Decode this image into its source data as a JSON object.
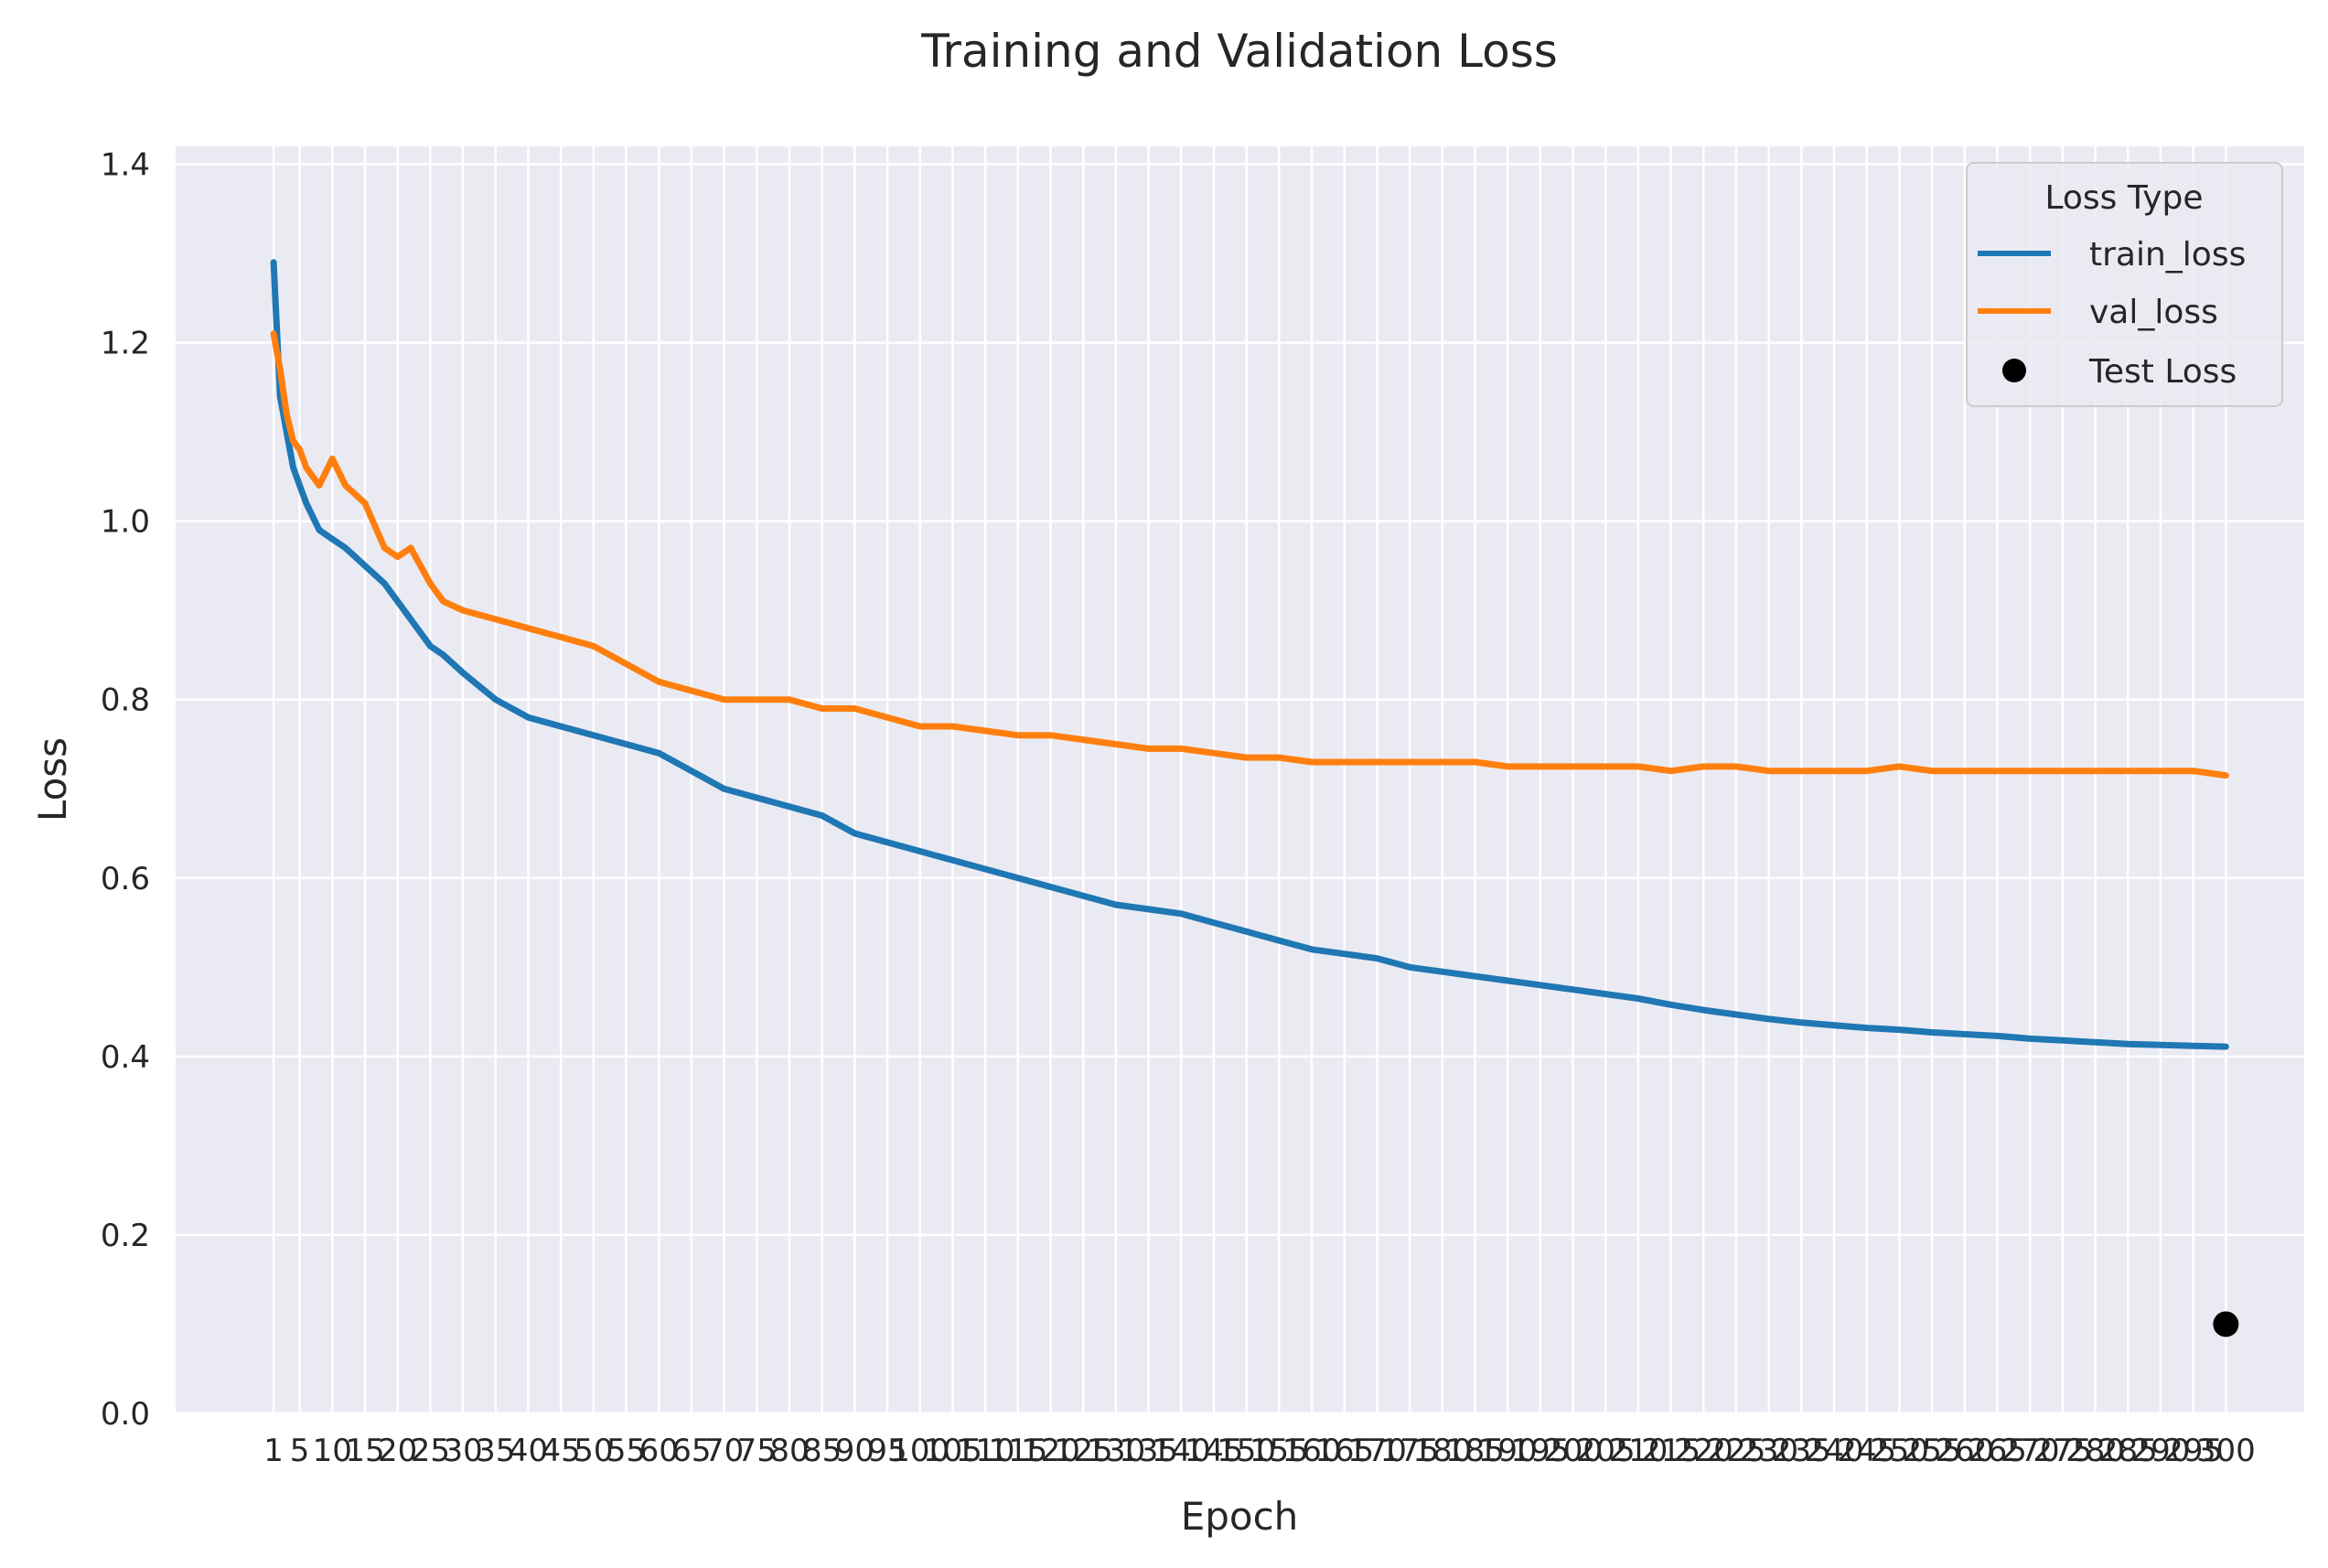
{
  "chart_data": {
    "type": "line",
    "title": "Training and Validation Loss",
    "xlabel": "Epoch",
    "ylabel": "Loss",
    "xlim": [
      -14,
      312
    ],
    "ylim": [
      0,
      1.42
    ],
    "yticks": [
      0.0,
      0.2,
      0.4,
      0.6,
      0.8,
      1.0,
      1.2,
      1.4
    ],
    "ytick_labels": [
      "0.0",
      "0.2",
      "0.4",
      "0.6",
      "0.8",
      "1.0",
      "1.2",
      "1.4"
    ],
    "xticks": [
      1,
      5,
      10,
      15,
      20,
      25,
      30,
      35,
      40,
      45,
      50,
      55,
      60,
      65,
      70,
      75,
      80,
      85,
      90,
      95,
      100,
      105,
      110,
      115,
      120,
      125,
      130,
      135,
      140,
      145,
      150,
      155,
      160,
      165,
      170,
      175,
      180,
      185,
      190,
      195,
      200,
      205,
      210,
      215,
      220,
      225,
      230,
      235,
      240,
      245,
      250,
      255,
      260,
      265,
      270,
      275,
      280,
      285,
      290,
      295,
      300
    ],
    "grid": true,
    "legend": {
      "title": "Loss Type",
      "placement": "top-right"
    },
    "series": [
      {
        "name": "train_loss",
        "color": "#1f77b4",
        "x": [
          1,
          2,
          3,
          4,
          5,
          6,
          8,
          10,
          12,
          15,
          18,
          20,
          22,
          25,
          27,
          30,
          35,
          40,
          45,
          50,
          55,
          60,
          65,
          70,
          75,
          80,
          85,
          90,
          95,
          100,
          105,
          110,
          115,
          120,
          125,
          130,
          135,
          140,
          145,
          150,
          155,
          160,
          165,
          170,
          175,
          180,
          185,
          190,
          195,
          200,
          205,
          210,
          215,
          220,
          225,
          230,
          235,
          240,
          245,
          250,
          255,
          260,
          265,
          270,
          275,
          280,
          285,
          290,
          295,
          300
        ],
        "y": [
          1.29,
          1.14,
          1.1,
          1.06,
          1.04,
          1.02,
          0.99,
          0.98,
          0.97,
          0.95,
          0.93,
          0.91,
          0.89,
          0.86,
          0.85,
          0.83,
          0.8,
          0.78,
          0.77,
          0.76,
          0.75,
          0.74,
          0.72,
          0.7,
          0.69,
          0.68,
          0.67,
          0.65,
          0.64,
          0.63,
          0.62,
          0.61,
          0.6,
          0.59,
          0.58,
          0.57,
          0.565,
          0.56,
          0.55,
          0.54,
          0.53,
          0.52,
          0.515,
          0.51,
          0.5,
          0.495,
          0.49,
          0.485,
          0.48,
          0.475,
          0.47,
          0.465,
          0.458,
          0.452,
          0.447,
          0.442,
          0.438,
          0.435,
          0.432,
          0.43,
          0.427,
          0.425,
          0.423,
          0.42,
          0.418,
          0.416,
          0.414,
          0.413,
          0.412,
          0.411
        ]
      },
      {
        "name": "val_loss",
        "color": "#ff7f0e",
        "x": [
          1,
          2,
          3,
          4,
          5,
          6,
          8,
          10,
          12,
          15,
          18,
          20,
          22,
          25,
          27,
          30,
          35,
          40,
          45,
          50,
          55,
          60,
          65,
          70,
          75,
          80,
          85,
          90,
          95,
          100,
          105,
          110,
          115,
          120,
          125,
          130,
          135,
          140,
          145,
          150,
          155,
          160,
          165,
          170,
          175,
          180,
          185,
          190,
          195,
          200,
          205,
          210,
          215,
          220,
          225,
          230,
          235,
          240,
          245,
          250,
          255,
          260,
          265,
          270,
          275,
          280,
          285,
          290,
          295,
          300
        ],
        "y": [
          1.21,
          1.17,
          1.12,
          1.09,
          1.08,
          1.06,
          1.04,
          1.07,
          1.04,
          1.02,
          0.97,
          0.96,
          0.97,
          0.93,
          0.91,
          0.9,
          0.89,
          0.88,
          0.87,
          0.86,
          0.84,
          0.82,
          0.81,
          0.8,
          0.8,
          0.8,
          0.79,
          0.79,
          0.78,
          0.77,
          0.77,
          0.765,
          0.76,
          0.76,
          0.755,
          0.75,
          0.745,
          0.745,
          0.74,
          0.735,
          0.735,
          0.73,
          0.73,
          0.73,
          0.73,
          0.73,
          0.73,
          0.725,
          0.725,
          0.725,
          0.725,
          0.725,
          0.72,
          0.725,
          0.725,
          0.72,
          0.72,
          0.72,
          0.72,
          0.725,
          0.72,
          0.72,
          0.72,
          0.72,
          0.72,
          0.72,
          0.72,
          0.72,
          0.72,
          0.715
        ]
      },
      {
        "name": "Test Loss",
        "color": "#000000",
        "type": "scatter",
        "x": [
          300
        ],
        "y": [
          0.1
        ]
      }
    ]
  }
}
